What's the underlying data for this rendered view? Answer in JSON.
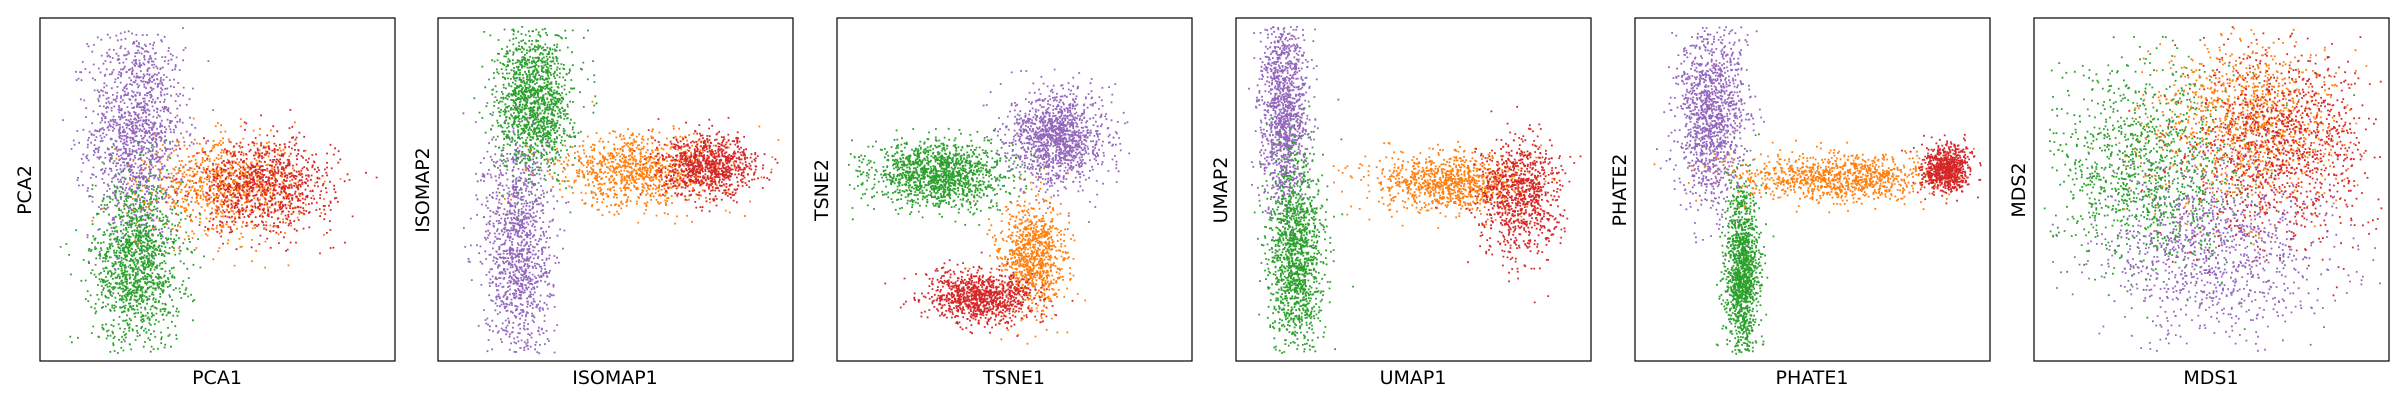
{
  "colors": {
    "purple": "#9467bd",
    "green": "#2ca02c",
    "orange": "#ff7f0e",
    "red": "#d62728",
    "blue": "#1f77b4",
    "frame": "#000000"
  },
  "chart_data": [
    {
      "id": "pca",
      "type": "scatter",
      "xlabel": "PCA1",
      "ylabel": "PCA2",
      "grid": false,
      "xticks": [],
      "yticks": [],
      "xlim": [
        -1,
        1
      ],
      "ylim": [
        -1,
        1
      ],
      "clusters": [
        {
          "color": "purple",
          "n": 1400,
          "cx": -0.48,
          "cy": 0.35,
          "sx": 0.14,
          "sy": 0.33
        },
        {
          "color": "green",
          "n": 1400,
          "cx": -0.48,
          "cy": -0.45,
          "sx": 0.13,
          "sy": 0.26
        },
        {
          "color": "orange",
          "n": 900,
          "cx": 0.05,
          "cy": 0.02,
          "sx": 0.22,
          "sy": 0.14
        },
        {
          "color": "red",
          "n": 900,
          "cx": 0.28,
          "cy": 0.03,
          "sx": 0.2,
          "sy": 0.14
        }
      ]
    },
    {
      "id": "isomap",
      "type": "scatter",
      "xlabel": "ISOMAP1",
      "ylabel": "ISOMAP2",
      "grid": false,
      "xticks": [],
      "yticks": [],
      "xlim": [
        -1,
        1
      ],
      "ylim": [
        -1,
        1
      ],
      "clusters": [
        {
          "color": "purple",
          "n": 1300,
          "cx": -0.58,
          "cy": -0.35,
          "sx": 0.1,
          "sy": 0.38
        },
        {
          "color": "green",
          "n": 1400,
          "cx": -0.48,
          "cy": 0.55,
          "sx": 0.11,
          "sy": 0.22
        },
        {
          "color": "orange",
          "n": 1000,
          "cx": 0.15,
          "cy": 0.12,
          "sx": 0.25,
          "sy": 0.11
        },
        {
          "color": "red",
          "n": 900,
          "cx": 0.55,
          "cy": 0.15,
          "sx": 0.14,
          "sy": 0.09
        }
      ]
    },
    {
      "id": "tsne",
      "type": "scatter",
      "xlabel": "TSNE1",
      "ylabel": "TSNE2",
      "grid": false,
      "xticks": [],
      "yticks": [],
      "xlim": [
        -1,
        1
      ],
      "ylim": [
        -1,
        1
      ],
      "clusters": [
        {
          "color": "purple",
          "n": 1300,
          "cx": 0.25,
          "cy": 0.32,
          "sx": 0.14,
          "sy": 0.14
        },
        {
          "color": "green",
          "n": 1400,
          "cx": -0.45,
          "cy": 0.1,
          "sx": 0.2,
          "sy": 0.1
        },
        {
          "color": "orange",
          "n": 900,
          "cx": 0.1,
          "cy": -0.42,
          "sx": 0.1,
          "sy": 0.17
        },
        {
          "color": "red",
          "n": 1000,
          "cx": -0.2,
          "cy": -0.65,
          "sx": 0.16,
          "sy": 0.08
        }
      ]
    },
    {
      "id": "umap",
      "type": "scatter",
      "xlabel": "UMAP1",
      "ylabel": "UMAP2",
      "grid": false,
      "xticks": [],
      "yticks": [],
      "xlim": [
        -1,
        1
      ],
      "ylim": [
        -1,
        1
      ],
      "clusters": [
        {
          "color": "purple",
          "n": 1300,
          "cx": -0.77,
          "cy": 0.48,
          "sx": 0.07,
          "sy": 0.3
        },
        {
          "color": "green",
          "n": 1400,
          "cx": -0.7,
          "cy": -0.4,
          "sx": 0.08,
          "sy": 0.3
        },
        {
          "color": "orange",
          "n": 1000,
          "cx": 0.2,
          "cy": 0.05,
          "sx": 0.22,
          "sy": 0.09
        },
        {
          "color": "red",
          "n": 900,
          "cx": 0.62,
          "cy": -0.05,
          "sx": 0.12,
          "sy": 0.18
        }
      ]
    },
    {
      "id": "phate",
      "type": "scatter",
      "xlabel": "PHATE1",
      "ylabel": "PHATE2",
      "grid": false,
      "xticks": [],
      "yticks": [],
      "xlim": [
        -1,
        1
      ],
      "ylim": [
        -1,
        1
      ],
      "clusters": [
        {
          "color": "purple",
          "n": 1300,
          "cx": -0.6,
          "cy": 0.45,
          "sx": 0.1,
          "sy": 0.28
        },
        {
          "color": "green",
          "n": 1300,
          "cx": -0.42,
          "cy": -0.5,
          "sx": 0.05,
          "sy": 0.25
        },
        {
          "color": "orange",
          "n": 1000,
          "cx": 0.15,
          "cy": 0.08,
          "sx": 0.28,
          "sy": 0.07
        },
        {
          "color": "red",
          "n": 800,
          "cx": 0.78,
          "cy": 0.13,
          "sx": 0.07,
          "sy": 0.07
        }
      ]
    },
    {
      "id": "mds",
      "type": "scatter",
      "xlabel": "MDS1",
      "ylabel": "MDS2",
      "grid": false,
      "xticks": [],
      "yticks": [],
      "xlim": [
        -1,
        1
      ],
      "ylim": [
        -1,
        1
      ],
      "clusters": [
        {
          "color": "purple",
          "n": 1200,
          "cx": 0.0,
          "cy": -0.35,
          "sx": 0.32,
          "sy": 0.28
        },
        {
          "color": "green",
          "n": 1200,
          "cx": -0.38,
          "cy": 0.12,
          "sx": 0.28,
          "sy": 0.3
        },
        {
          "color": "orange",
          "n": 1100,
          "cx": 0.22,
          "cy": 0.42,
          "sx": 0.28,
          "sy": 0.26
        },
        {
          "color": "red",
          "n": 1100,
          "cx": 0.42,
          "cy": 0.28,
          "sx": 0.26,
          "sy": 0.3
        }
      ]
    }
  ]
}
